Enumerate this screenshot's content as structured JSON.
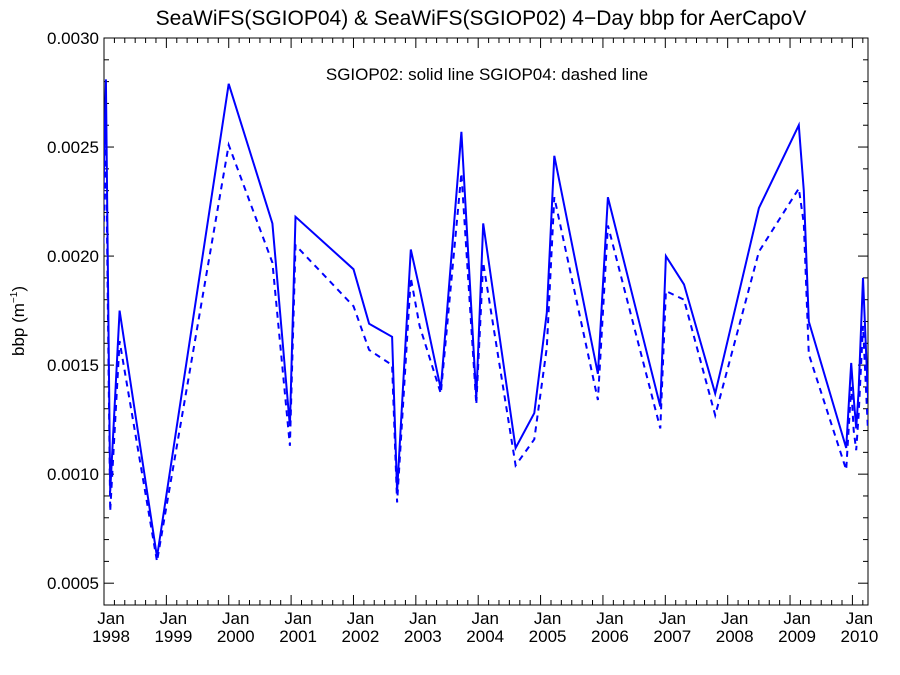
{
  "chart_data": {
    "type": "line",
    "title": "SeaWiFS(SGIOP04) & SeaWiFS(SGIOP02) 4−Day bbp for AerCapoV",
    "annotation": "SGIOP02: solid line   SGIOP04: dashed line",
    "ylabel_main": "bbp (m",
    "ylabel_sup": "−1",
    "ylabel_close": ")",
    "xlim": [
      1998.0,
      2010.25
    ],
    "ylim": [
      0.0004,
      0.003
    ],
    "yticks": [
      {
        "value": 0.0005,
        "label": "0.0005"
      },
      {
        "value": 0.001,
        "label": "0.0010"
      },
      {
        "value": 0.0015,
        "label": "0.0015"
      },
      {
        "value": 0.002,
        "label": "0.0020"
      },
      {
        "value": 0.0025,
        "label": "0.0025"
      },
      {
        "value": 0.003,
        "label": "0.0030"
      }
    ],
    "xticks": [
      {
        "value": 1998,
        "month": "Jan",
        "year": "1998"
      },
      {
        "value": 1999,
        "month": "Jan",
        "year": "1999"
      },
      {
        "value": 2000,
        "month": "Jan",
        "year": "2000"
      },
      {
        "value": 2001,
        "month": "Jan",
        "year": "2001"
      },
      {
        "value": 2002,
        "month": "Jan",
        "year": "2002"
      },
      {
        "value": 2003,
        "month": "Jan",
        "year": "2003"
      },
      {
        "value": 2004,
        "month": "Jan",
        "year": "2004"
      },
      {
        "value": 2005,
        "month": "Jan",
        "year": "2005"
      },
      {
        "value": 2006,
        "month": "Jan",
        "year": "2006"
      },
      {
        "value": 2007,
        "month": "Jan",
        "year": "2007"
      },
      {
        "value": 2008,
        "month": "Jan",
        "year": "2008"
      },
      {
        "value": 2009,
        "month": "Jan",
        "year": "2009"
      },
      {
        "value": 2010,
        "month": "Jan",
        "year": "2010"
      }
    ],
    "line_color": "#0000ff",
    "series": [
      {
        "style": "solid",
        "x": [
          1997.92,
          1998.03,
          1998.1,
          1998.25,
          1998.85,
          2000.0,
          2000.7,
          2000.98,
          2001.07,
          2002.0,
          2002.25,
          2002.62,
          2002.7,
          2002.92,
          2003.06,
          2003.4,
          2003.73,
          2003.97,
          2004.08,
          2004.6,
          2004.9,
          2005.1,
          2005.22,
          2005.92,
          2006.08,
          2006.92,
          2007.01,
          2007.3,
          2007.8,
          2008.5,
          2009.14,
          2009.22,
          2009.3,
          2009.9,
          2009.98,
          2010.02,
          2010.06,
          2010.1,
          2010.17,
          2010.25
        ],
        "y": [
          0.00132,
          0.00281,
          0.00092,
          0.00175,
          0.00062,
          0.00279,
          0.00215,
          0.00122,
          0.00218,
          0.00194,
          0.00169,
          0.00163,
          0.00092,
          0.00203,
          0.00185,
          0.00139,
          0.00257,
          0.00135,
          0.00215,
          0.00112,
          0.00128,
          0.00174,
          0.00246,
          0.00146,
          0.00227,
          0.00131,
          0.002,
          0.00187,
          0.00137,
          0.00222,
          0.0026,
          0.0023,
          0.0017,
          0.00112,
          0.00151,
          0.00135,
          0.00121,
          0.00138,
          0.0019,
          0.00135
        ]
      },
      {
        "style": "dashed",
        "x": [
          1997.92,
          1998.03,
          1998.1,
          1998.25,
          1998.85,
          2000.0,
          2000.7,
          2000.98,
          2001.07,
          2002.0,
          2002.25,
          2002.62,
          2002.7,
          2002.92,
          2003.06,
          2003.4,
          2003.73,
          2003.97,
          2004.08,
          2004.6,
          2004.9,
          2005.1,
          2005.22,
          2005.92,
          2006.08,
          2006.92,
          2007.01,
          2007.3,
          2007.8,
          2008.5,
          2009.14,
          2009.22,
          2009.3,
          2009.9,
          2009.98,
          2010.02,
          2010.06,
          2010.1,
          2010.17,
          2010.25
        ],
        "y": [
          0.0012,
          0.00255,
          0.00083,
          0.00161,
          0.0006,
          0.00251,
          0.00197,
          0.00113,
          0.00205,
          0.00177,
          0.00157,
          0.0015,
          0.00087,
          0.0019,
          0.00168,
          0.00137,
          0.00238,
          0.00132,
          0.00197,
          0.00104,
          0.00116,
          0.00158,
          0.00227,
          0.00134,
          0.00214,
          0.00121,
          0.00184,
          0.0018,
          0.00127,
          0.00202,
          0.00231,
          0.00215,
          0.00155,
          0.00102,
          0.0014,
          0.0012,
          0.00111,
          0.00127,
          0.00168,
          0.0012
        ]
      }
    ]
  }
}
